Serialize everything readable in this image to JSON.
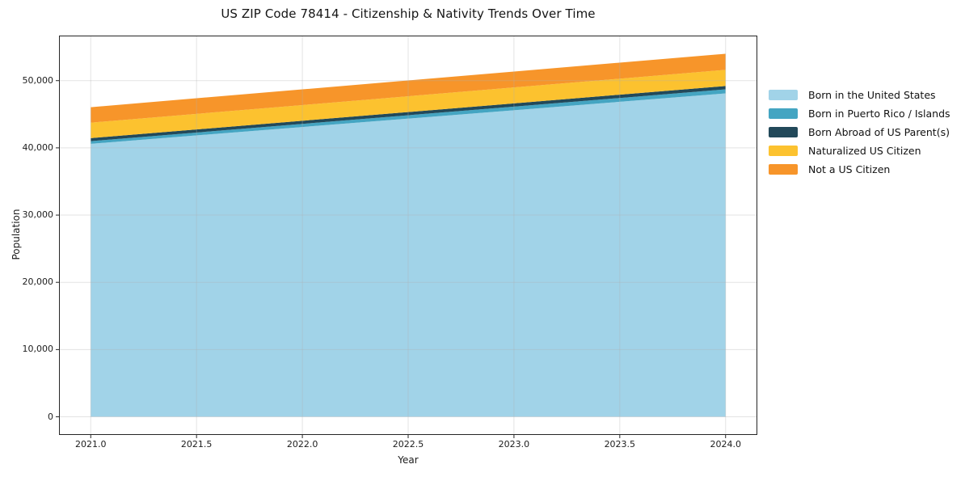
{
  "chart_data": {
    "type": "area",
    "stacked": true,
    "title": "US ZIP Code 78414 - Citizenship & Nativity Trends Over Time",
    "xlabel": "Year",
    "ylabel": "Population",
    "x": [
      2021,
      2022,
      2023,
      2024
    ],
    "series": [
      {
        "name": "Born in the United States",
        "color": "#A1D3E8",
        "values": [
          40600,
          43100,
          45600,
          48100
        ]
      },
      {
        "name": "Born in Puerto Rico / Islands",
        "color": "#44A5C2",
        "values": [
          400,
          465,
          535,
          600
        ]
      },
      {
        "name": "Born Abroad of US Parent(s)",
        "color": "#22495A",
        "values": [
          450,
          465,
          485,
          500
        ]
      },
      {
        "name": "Naturalized US Citizen",
        "color": "#FCC22F",
        "values": [
          2300,
          2335,
          2365,
          2400
        ]
      },
      {
        "name": "Not a US Citizen",
        "color": "#F7952A",
        "values": [
          2300,
          2335,
          2365,
          2400
        ]
      }
    ],
    "xlim": [
      2020.85,
      2024.15
    ],
    "ylim": [
      -2700,
      56700
    ],
    "xticks": [
      2021.0,
      2021.5,
      2022.0,
      2022.5,
      2023.0,
      2023.5,
      2024.0
    ],
    "xtick_labels": [
      "2021.0",
      "2021.5",
      "2022.0",
      "2022.5",
      "2023.0",
      "2023.5",
      "2024.0"
    ],
    "yticks": [
      0,
      10000,
      20000,
      30000,
      40000,
      50000
    ],
    "ytick_labels": [
      "0",
      "10,000",
      "20,000",
      "30,000",
      "40,000",
      "50,000"
    ],
    "grid": true,
    "grid_color": "rgba(176,176,176,0.35)",
    "spine_color": "#262626",
    "legend_position": "right-outside"
  }
}
